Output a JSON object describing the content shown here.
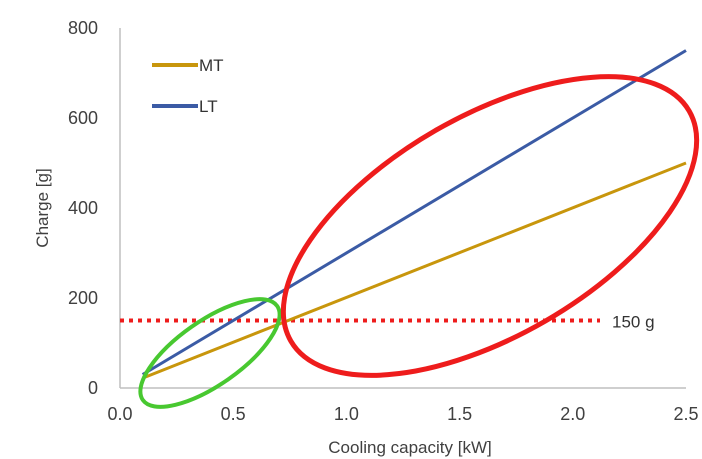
{
  "chart_data": {
    "type": "line",
    "xlabel": "Cooling capacity [kW]",
    "ylabel": "Charge [g]",
    "xlim": [
      0,
      2.5
    ],
    "ylim": [
      0,
      800
    ],
    "x_ticks": [
      "0.0",
      "0.5",
      "1.0",
      "1.5",
      "2.0",
      "2.5"
    ],
    "y_ticks": [
      "0",
      "200",
      "400",
      "600",
      "800"
    ],
    "grid": false,
    "legend_position": "top-left",
    "series": [
      {
        "name": "MT",
        "color": "#c8960c",
        "x": [
          0.1,
          2.5
        ],
        "y": [
          22,
          500
        ]
      },
      {
        "name": "LT",
        "color": "#3b5ba5",
        "x": [
          0.1,
          2.5
        ],
        "y": [
          30,
          750
        ]
      }
    ],
    "reference_line": {
      "y": 150,
      "label": "150 g",
      "color": "#ee1c1c",
      "style": "dotted"
    },
    "highlights": [
      {
        "shape": "ellipse",
        "color": "#48c830"
      },
      {
        "shape": "ellipse",
        "color": "#ee1c1c"
      }
    ]
  }
}
